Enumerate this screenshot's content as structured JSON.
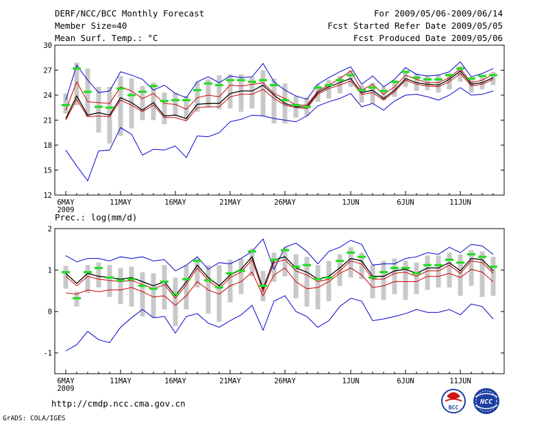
{
  "header": {
    "title": "DERF/NCC/BCC Monthly Forecast",
    "member_size": "Member Size=40",
    "variable": "Mean Surf. Temp.: °C",
    "period": "For 2009/05/06-2009/06/14",
    "started": "Fcst Started Refer Date 2009/05/05",
    "produced": "Fcst Produced Date 2009/05/06"
  },
  "footer": {
    "url": "http://cmdp.ncc.cma.gov.cn",
    "credit": "GrADS: COLA/IGES",
    "logo_left_text": "BCC",
    "logo_right_text": "NCC"
  },
  "colors": {
    "envelope": "#0000cc",
    "percentile": "#cc0000",
    "ensemble_mean": "#000000",
    "median": "#22dd22",
    "spread_bar": "#c8c8c8"
  },
  "chart_data": [
    {
      "type": "line",
      "title": "Mean Surf. Temp.: °C",
      "ylim": [
        12,
        30
      ],
      "yticks": [
        12,
        15,
        18,
        21,
        24,
        27,
        30
      ],
      "xlim": [
        1,
        40
      ],
      "xticks": [
        {
          "day": 1,
          "label": "6MAY",
          "sublabel": "2009"
        },
        {
          "day": 6,
          "label": "11MAY"
        },
        {
          "day": 11,
          "label": "16MAY"
        },
        {
          "day": 16,
          "label": "21MAY"
        },
        {
          "day": 21,
          "label": "26MAY"
        },
        {
          "day": 27,
          "label": "1JUN"
        },
        {
          "day": 32,
          "label": "6JUN"
        },
        {
          "day": 37,
          "label": "11JUN"
        }
      ],
      "series": [
        {
          "name": "max",
          "values": [
            23.4,
            27.6,
            25.8,
            24.3,
            24.5,
            26.8,
            26.4,
            25.9,
            24.6,
            25.2,
            24.2,
            23.7,
            25.6,
            26.2,
            25.5,
            26.3,
            26.1,
            26.2,
            27.8,
            25.6,
            24.6,
            23.9,
            23.5,
            25.3,
            26.1,
            26.8,
            27.4,
            25.3,
            26.3,
            25.0,
            25.9,
            27.3,
            26.5,
            26.3,
            26.4,
            26.8,
            28.0,
            26.2,
            26.6,
            27.2
          ]
        },
        {
          "name": "p90",
          "values": [
            22.2,
            25.6,
            23.2,
            23.1,
            23.0,
            25.0,
            24.5,
            23.6,
            24.2,
            23.0,
            22.9,
            22.3,
            23.7,
            24.0,
            23.8,
            25.2,
            25.1,
            25.3,
            25.5,
            24.2,
            23.6,
            22.8,
            22.8,
            24.5,
            25.2,
            26.0,
            26.9,
            24.6,
            25.3,
            24.1,
            25.0,
            26.4,
            25.9,
            25.5,
            25.5,
            26.1,
            27.2,
            25.5,
            25.8,
            26.5
          ]
        },
        {
          "name": "mean",
          "values": [
            21.2,
            23.9,
            21.6,
            21.9,
            21.6,
            23.7,
            23.1,
            22.2,
            23.1,
            21.5,
            21.6,
            21.2,
            22.9,
            23.0,
            23.0,
            24.2,
            24.5,
            24.5,
            25.2,
            24.0,
            23.0,
            22.6,
            22.6,
            24.3,
            25.0,
            25.5,
            26.0,
            24.3,
            24.6,
            23.6,
            24.6,
            26.0,
            25.5,
            25.3,
            25.2,
            25.9,
            26.9,
            25.3,
            25.5,
            26.1
          ]
        },
        {
          "name": "p10",
          "values": [
            21.0,
            23.5,
            21.4,
            21.5,
            21.4,
            23.4,
            22.8,
            22.0,
            22.8,
            21.3,
            21.3,
            20.9,
            22.5,
            22.6,
            22.6,
            23.8,
            24.1,
            24.1,
            24.7,
            23.6,
            22.8,
            22.5,
            22.4,
            24.1,
            24.8,
            25.2,
            25.7,
            24.1,
            24.3,
            23.4,
            24.4,
            25.8,
            25.3,
            25.1,
            25.0,
            25.6,
            26.6,
            25.1,
            25.3,
            25.9
          ]
        },
        {
          "name": "min",
          "values": [
            17.4,
            15.5,
            13.7,
            17.3,
            17.4,
            20.1,
            19.3,
            16.8,
            17.5,
            17.4,
            17.9,
            16.5,
            19.1,
            19.0,
            19.5,
            20.8,
            21.1,
            21.6,
            21.5,
            21.2,
            21.0,
            20.8,
            21.5,
            22.7,
            23.2,
            23.6,
            24.2,
            22.6,
            23.0,
            22.2,
            23.3,
            24.0,
            24.1,
            23.8,
            23.4,
            24.0,
            24.9,
            24.0,
            24.1,
            24.5
          ]
        },
        {
          "name": "median",
          "values": [
            22.8,
            27.2,
            24.4,
            22.6,
            22.5,
            24.8,
            24.0,
            24.4,
            25.1,
            23.3,
            23.4,
            23.4,
            24.6,
            25.4,
            25.2,
            25.8,
            25.8,
            25.6,
            25.8,
            25.2,
            23.4,
            22.8,
            22.6,
            24.9,
            25.2,
            25.8,
            26.4,
            24.6,
            24.9,
            24.5,
            25.6,
            26.8,
            26.1,
            25.9,
            25.9,
            26.4,
            27.2,
            26.0,
            26.3,
            26.4
          ]
        }
      ],
      "spread_bars": {
        "low": [
          21.8,
          22.8,
          21.4,
          19.5,
          18.2,
          19.1,
          20.0,
          21.0,
          21.0,
          20.5,
          21.5,
          21.0,
          22.0,
          22.5,
          22.3,
          22.4,
          22.0,
          22.4,
          21.5,
          20.6,
          20.6,
          21.3,
          21.5,
          23.2,
          23.6,
          24.2,
          25.0,
          23.1,
          23.0,
          23.4,
          23.8,
          25.0,
          24.5,
          24.6,
          24.3,
          24.7,
          25.6,
          24.3,
          24.7,
          25.2
        ],
        "high": [
          24.2,
          27.9,
          27.2,
          25.0,
          25.0,
          26.3,
          26.0,
          25.1,
          25.5,
          24.3,
          24.3,
          23.9,
          25.6,
          25.9,
          26.4,
          26.5,
          26.5,
          26.2,
          27.0,
          26.0,
          25.4,
          23.9,
          23.7,
          25.3,
          25.8,
          26.3,
          27.0,
          25.2,
          25.5,
          25.0,
          25.8,
          26.9,
          26.6,
          26.3,
          26.5,
          26.6,
          27.5,
          26.0,
          26.4,
          26.8
        ]
      }
    },
    {
      "type": "line",
      "title": "Prec.: log(mm/d)",
      "ylim": [
        -1.5,
        2
      ],
      "yticks": [
        -1,
        0,
        1,
        2
      ],
      "xlim": [
        1,
        40
      ],
      "xticks": [
        {
          "day": 1,
          "label": "6MAY",
          "sublabel": "2009"
        },
        {
          "day": 6,
          "label": "11MAY"
        },
        {
          "day": 11,
          "label": "16MAY"
        },
        {
          "day": 16,
          "label": "21MAY"
        },
        {
          "day": 21,
          "label": "26MAY"
        },
        {
          "day": 27,
          "label": "1JUN"
        },
        {
          "day": 32,
          "label": "6JUN"
        },
        {
          "day": 37,
          "label": "11JUN"
        }
      ],
      "series": [
        {
          "name": "max",
          "values": [
            1.35,
            1.2,
            1.28,
            1.28,
            1.22,
            1.32,
            1.28,
            1.32,
            1.22,
            1.25,
            0.98,
            1.12,
            1.32,
            1.02,
            1.18,
            1.15,
            1.28,
            1.45,
            1.75,
            1.02,
            1.55,
            1.65,
            1.45,
            1.15,
            1.45,
            1.55,
            1.72,
            1.62,
            1.12,
            1.15,
            1.15,
            1.28,
            1.32,
            1.42,
            1.38,
            1.55,
            1.42,
            1.62,
            1.58,
            1.38
          ]
        },
        {
          "name": "mean",
          "values": [
            0.92,
            0.68,
            0.92,
            0.85,
            0.82,
            0.78,
            0.82,
            0.72,
            0.62,
            0.72,
            0.38,
            0.72,
            1.12,
            0.82,
            0.62,
            0.88,
            1.02,
            1.32,
            0.55,
            1.25,
            1.32,
            1.05,
            0.95,
            0.78,
            0.85,
            1.05,
            1.28,
            1.22,
            0.85,
            0.85,
            0.98,
            1.02,
            0.92,
            1.05,
            1.05,
            1.18,
            0.98,
            1.28,
            1.25,
            0.98
          ]
        },
        {
          "name": "p10",
          "values": [
            0.85,
            0.62,
            0.85,
            0.78,
            0.75,
            0.72,
            0.75,
            0.65,
            0.55,
            0.65,
            0.32,
            0.65,
            1.05,
            0.75,
            0.55,
            0.82,
            0.95,
            1.25,
            0.48,
            1.18,
            1.25,
            0.98,
            0.88,
            0.72,
            0.78,
            0.98,
            1.22,
            1.15,
            0.78,
            0.78,
            0.92,
            0.95,
            0.85,
            0.98,
            0.98,
            1.12,
            0.92,
            1.22,
            1.18,
            0.92
          ]
        },
        {
          "name": "p90",
          "values": [
            0.45,
            0.42,
            0.52,
            0.48,
            0.52,
            0.52,
            0.58,
            0.48,
            0.35,
            0.38,
            0.15,
            0.38,
            0.72,
            0.52,
            0.42,
            0.62,
            0.72,
            0.95,
            0.38,
            0.88,
            1.05,
            0.72,
            0.55,
            0.58,
            0.72,
            0.92,
            1.05,
            0.88,
            0.58,
            0.62,
            0.72,
            0.72,
            0.72,
            0.85,
            0.85,
            0.92,
            0.82,
            1.02,
            0.95,
            0.72
          ]
        },
        {
          "name": "min",
          "values": [
            -0.95,
            -0.8,
            -0.48,
            -0.68,
            -0.75,
            -0.38,
            -0.15,
            0.05,
            -0.15,
            -0.12,
            -0.52,
            -0.12,
            -0.05,
            -0.28,
            -0.38,
            -0.22,
            -0.08,
            0.15,
            -0.45,
            0.25,
            0.38,
            0.0,
            -0.12,
            -0.38,
            -0.22,
            0.12,
            0.32,
            0.25,
            -0.22,
            -0.18,
            -0.12,
            -0.05,
            0.05,
            -0.02,
            -0.02,
            0.05,
            -0.08,
            0.18,
            0.12,
            -0.18
          ]
        },
        {
          "name": "median",
          "values": [
            0.95,
            0.32,
            0.95,
            1.05,
            0.82,
            0.75,
            0.78,
            0.62,
            0.55,
            0.72,
            0.42,
            0.78,
            1.22,
            0.75,
            0.58,
            0.92,
            0.98,
            1.45,
            0.62,
            1.25,
            1.48,
            1.08,
            1.12,
            0.78,
            0.82,
            1.22,
            1.42,
            1.32,
            0.82,
            0.95,
            1.05,
            1.05,
            0.92,
            1.12,
            1.12,
            1.25,
            1.18,
            1.38,
            1.32,
            1.08
          ]
        }
      ],
      "spread_bars": {
        "low": [
          0.55,
          0.12,
          0.45,
          0.58,
          0.35,
          0.18,
          0.12,
          -0.12,
          -0.15,
          0.05,
          -0.35,
          0.05,
          0.58,
          -0.05,
          -0.25,
          0.22,
          0.42,
          0.85,
          0.25,
          0.72,
          0.85,
          0.32,
          0.12,
          0.05,
          0.25,
          0.62,
          0.82,
          0.78,
          0.32,
          0.28,
          0.42,
          0.28,
          0.42,
          0.52,
          0.58,
          0.58,
          0.38,
          0.62,
          0.35,
          0.38
        ],
        "high": [
          1.1,
          0.48,
          1.12,
          1.18,
          1.12,
          1.05,
          1.08,
          0.95,
          0.92,
          1.12,
          0.82,
          1.12,
          1.28,
          1.12,
          1.12,
          1.25,
          1.28,
          1.52,
          0.98,
          1.42,
          1.55,
          1.38,
          1.32,
          1.12,
          1.22,
          1.38,
          1.55,
          1.42,
          1.12,
          1.22,
          1.28,
          1.22,
          1.18,
          1.35,
          1.35,
          1.42,
          1.38,
          1.48,
          1.45,
          1.32
        ]
      }
    }
  ]
}
